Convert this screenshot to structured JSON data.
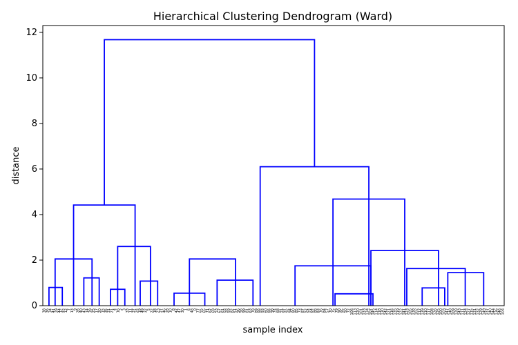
{
  "chart_data": {
    "type": "dendrogram",
    "title": "Hierarchical Clustering Dendrogram (Ward)",
    "xlabel": "sample index",
    "ylabel": "distance",
    "ylim": [
      0,
      12.3
    ],
    "yticks": [
      0,
      2,
      4,
      6,
      8,
      10,
      12
    ],
    "line_color": "#0000ff",
    "leaf_count": 150,
    "merges": [
      {
        "x_left": 30.0,
        "x_right": 90.0,
        "height": 4.42
      },
      {
        "x_left": 12.0,
        "x_right": 48.0,
        "height": 2.05
      },
      {
        "x_left": 6.0,
        "x_right": 19.0,
        "height": 0.8
      },
      {
        "x_left": 40.0,
        "x_right": 55.0,
        "height": 1.22
      },
      {
        "x_left": 73.0,
        "x_right": 105.0,
        "height": 2.6
      },
      {
        "x_left": 66.0,
        "x_right": 80.0,
        "height": 0.72
      },
      {
        "x_left": 95.0,
        "x_right": 112.0,
        "height": 1.08
      },
      {
        "x_left": 212.0,
        "x_right": 318.0,
        "height": 6.1
      },
      {
        "x_left": 143.0,
        "x_right": 188.0,
        "height": 2.05
      },
      {
        "x_left": 128.0,
        "x_right": 158.0,
        "height": 0.55
      },
      {
        "x_left": 170.0,
        "x_right": 205.0,
        "height": 1.12
      },
      {
        "x_left": 283.0,
        "x_right": 353.0,
        "height": 4.68
      },
      {
        "x_left": 246.0,
        "x_right": 320.0,
        "height": 1.75
      },
      {
        "x_left": 320.0,
        "x_right": 386.0,
        "height": 2.42
      },
      {
        "x_left": 285.0,
        "x_right": 322.0,
        "height": 0.52
      },
      {
        "x_left": 355.0,
        "x_right": 412.0,
        "height": 1.63
      },
      {
        "x_left": 370.0,
        "x_right": 392.0,
        "height": 0.78
      },
      {
        "x_left": 395.0,
        "x_right": 430.0,
        "height": 1.45
      }
    ],
    "leaf_labels": [
      "38",
      "36",
      "34",
      "41",
      "29",
      "44",
      "45",
      "12",
      "7",
      "13",
      "9",
      "26",
      "40",
      "43",
      "14",
      "39",
      "25",
      "17",
      "20",
      "15",
      "35",
      "31",
      "21",
      "4",
      "16",
      "2",
      "3",
      "33",
      "11",
      "37",
      "24",
      "19",
      "49",
      "32",
      "5",
      "22",
      "18",
      "23",
      "27",
      "46",
      "28",
      "10",
      "8",
      "42",
      "47",
      "30",
      "1",
      "6",
      "48",
      "0",
      "77",
      "55",
      "65",
      "71",
      "62",
      "69",
      "53",
      "67",
      "61",
      "58",
      "59",
      "82",
      "51",
      "96",
      "56",
      "99",
      "81",
      "63",
      "78",
      "89",
      "88",
      "93",
      "60",
      "66",
      "98",
      "74",
      "68",
      "91",
      "97",
      "92",
      "94",
      "80",
      "85",
      "73",
      "87",
      "52",
      "54",
      "64",
      "86",
      "83",
      "76",
      "84",
      "57",
      "70",
      "75",
      "79",
      "90",
      "95",
      "50",
      "72",
      "106",
      "113",
      "120",
      "101",
      "133",
      "134",
      "107",
      "145",
      "114",
      "118",
      "130",
      "142",
      "121",
      "116",
      "135",
      "119",
      "122",
      "141",
      "123",
      "105",
      "138",
      "102",
      "112",
      "139",
      "110",
      "117",
      "108",
      "126",
      "125",
      "100",
      "103",
      "147",
      "148",
      "109",
      "128",
      "143",
      "111",
      "124",
      "127",
      "115",
      "131",
      "132",
      "129",
      "149",
      "137",
      "140",
      "144",
      "136",
      "146",
      "104"
    ]
  }
}
